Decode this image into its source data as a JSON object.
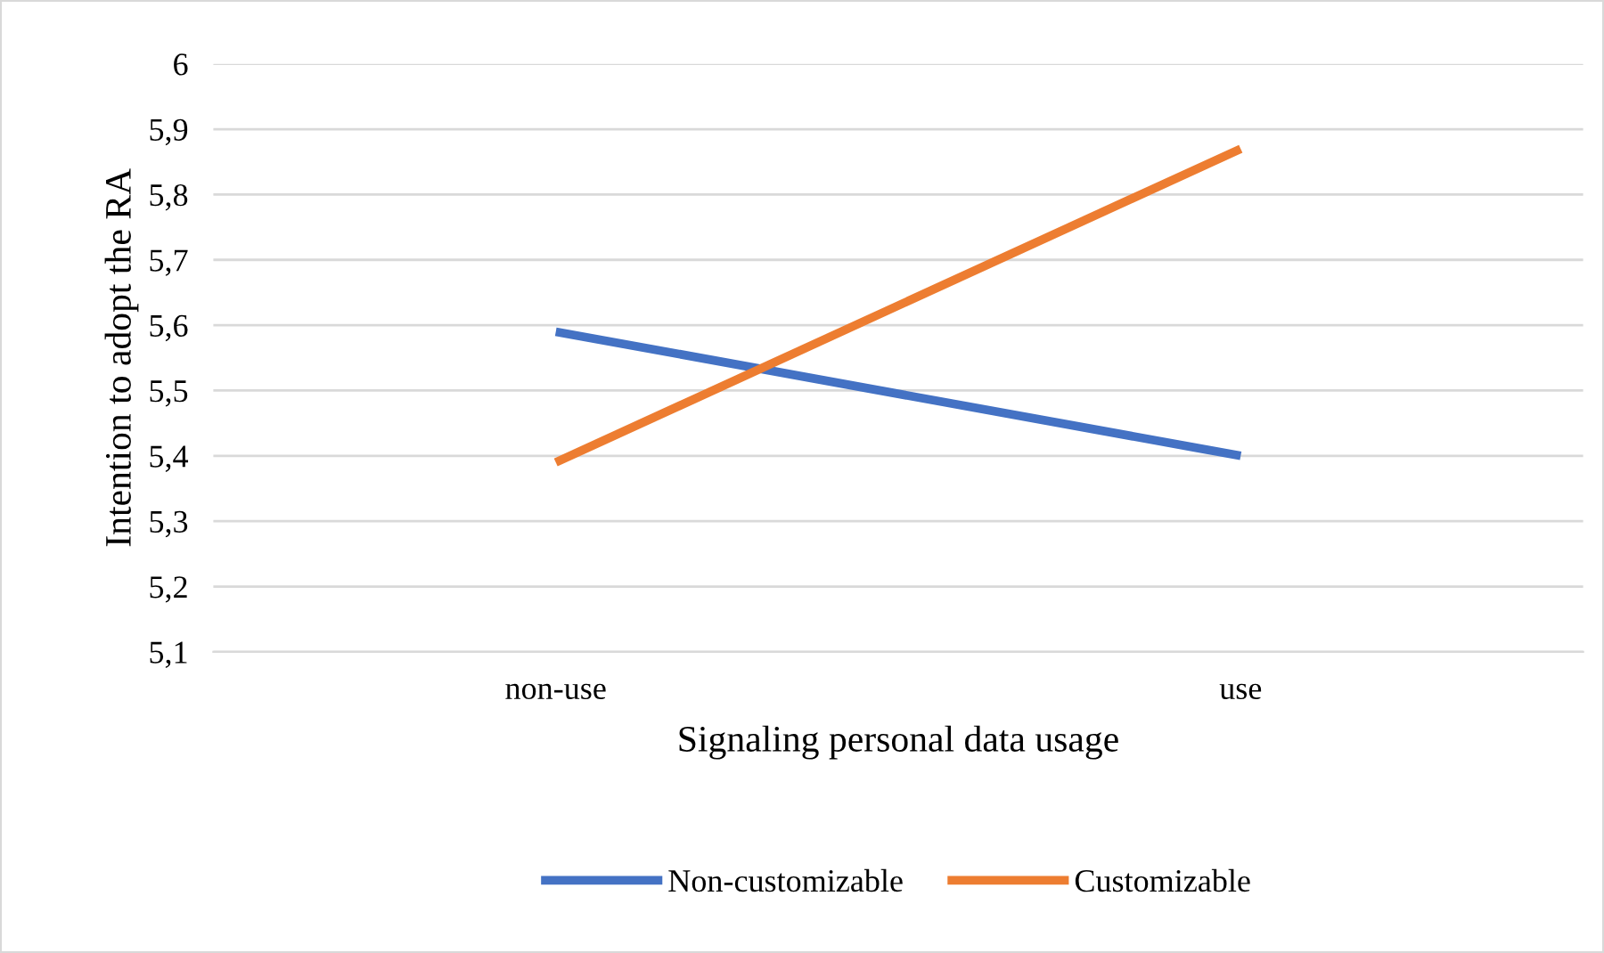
{
  "chart_data": {
    "type": "line",
    "xlabel": "Signaling personal data usage",
    "ylabel": "Intention to adopt the RA",
    "categories": [
      "non-use",
      "use"
    ],
    "series": [
      {
        "name": "Non-customizable",
        "color": "#4472c4",
        "values": [
          5.59,
          5.4
        ]
      },
      {
        "name": "Customizable",
        "color": "#ed7d31",
        "values": [
          5.39,
          5.87
        ]
      }
    ],
    "ylim": [
      5.1,
      6
    ],
    "yticks": [
      {
        "value": 5.1,
        "label": "5,1"
      },
      {
        "value": 5.2,
        "label": "5,2"
      },
      {
        "value": 5.3,
        "label": "5,3"
      },
      {
        "value": 5.4,
        "label": "5,4"
      },
      {
        "value": 5.5,
        "label": "5,5"
      },
      {
        "value": 5.6,
        "label": "5,6"
      },
      {
        "value": 5.7,
        "label": "5,7"
      },
      {
        "value": 5.8,
        "label": "5,8"
      },
      {
        "value": 5.9,
        "label": "5,9"
      },
      6
    ],
    "grid": "y",
    "legend": "bottom",
    "marker": "none",
    "line_style": "solid"
  }
}
